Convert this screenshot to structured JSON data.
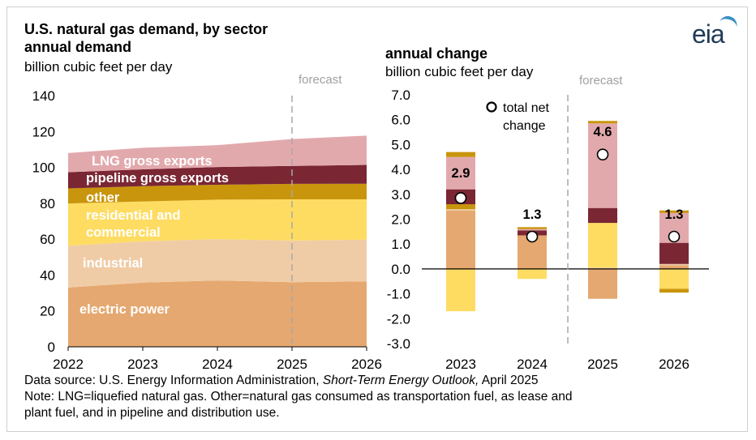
{
  "header": {
    "title_line1": "U.S. natural gas demand, by sector",
    "left_subtitle": "annual demand",
    "left_unit": "billion cubic feet per day",
    "right_subtitle": "annual change",
    "right_unit": "billion cubic feet per day",
    "forecast_label": "forecast",
    "logo_text": "eia"
  },
  "footer": {
    "source_prefix": "Data source: U.S. Energy Information Administration,",
    "source_italic": "Short-Term Energy Outlook,",
    "source_suffix": "April 2025",
    "note_line1": "Note: LNG=liquefied natural gas. Other=natural gas consumed as transportation fuel, as lease and",
    "note_line2": "plant fuel, and in pipeline and distribution use."
  },
  "colors": {
    "electric_power": "#e5a870",
    "industrial": "#f0cca6",
    "residential_commercial": "#fedc62",
    "other": "#c9950c",
    "pipeline_exports": "#7a2633",
    "lng_exports": "#e2a9ad",
    "marker_fill": "#ffffff"
  },
  "chart_data": [
    {
      "type": "area",
      "title": "annual demand",
      "ylabel": "billion cubic feet per day",
      "x": [
        2022,
        2023,
        2024,
        2025,
        2026
      ],
      "ylim": [
        0,
        140
      ],
      "yticks": [
        0,
        20,
        40,
        60,
        80,
        100,
        120,
        140
      ],
      "forecast_start": 2025,
      "series": [
        {
          "name": "electric power",
          "values": [
            33.0,
            35.8,
            37.0,
            36.0,
            36.5
          ]
        },
        {
          "name": "industrial",
          "values": [
            23.3,
            23.0,
            23.0,
            23.2,
            23.2
          ]
        },
        {
          "name": "residential and commercial",
          "values": [
            23.6,
            22.2,
            22.0,
            23.0,
            22.5
          ]
        },
        {
          "name": "other",
          "values": [
            8.4,
            8.5,
            8.3,
            8.6,
            8.7
          ]
        },
        {
          "name": "pipeline gross exports",
          "values": [
            9.0,
            9.4,
            9.9,
            10.0,
            10.5
          ]
        },
        {
          "name": "LNG gross exports",
          "values": [
            10.7,
            12.0,
            12.2,
            15.0,
            16.3
          ]
        }
      ]
    },
    {
      "type": "bar",
      "stacked": true,
      "title": "annual change",
      "ylabel": "billion cubic feet per day",
      "categories": [
        "2023",
        "2024",
        "2025",
        "2026"
      ],
      "ylim": [
        -3.0,
        7.0
      ],
      "yticks": [
        -3.0,
        -2.0,
        -1.0,
        0.0,
        1.0,
        2.0,
        3.0,
        4.0,
        5.0,
        6.0,
        7.0
      ],
      "forecast_start": "2025",
      "legend": "total net change",
      "series": [
        {
          "name": "electric power",
          "values": [
            2.35,
            1.35,
            -1.2,
            0.15
          ]
        },
        {
          "name": "industrial",
          "values": [
            0.05,
            0.0,
            0.05,
            0.05
          ]
        },
        {
          "name": "residential and commercial",
          "values": [
            -1.7,
            -0.4,
            1.8,
            -0.8
          ]
        },
        {
          "name": "other",
          "values": [
            0.2,
            0.0,
            0.0,
            -0.15
          ]
        },
        {
          "name": "pipeline gross exports",
          "values": [
            0.6,
            0.2,
            0.6,
            0.85
          ]
        },
        {
          "name": "LNG gross exports",
          "values": [
            1.3,
            0.05,
            3.4,
            1.2
          ]
        },
        {
          "name": "other",
          "values": [
            0.2,
            0.08,
            0.1,
            0.1
          ]
        }
      ],
      "total_net_change": [
        2.85,
        1.3,
        4.6,
        1.3
      ],
      "total_labels": [
        "2.9",
        "1.3",
        "4.6",
        "1.3"
      ]
    }
  ]
}
